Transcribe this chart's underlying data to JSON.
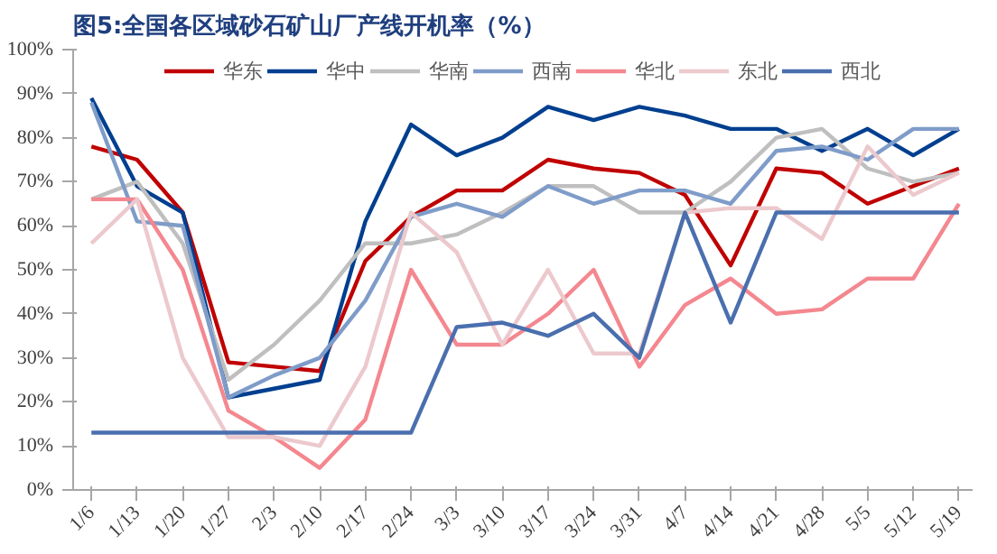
{
  "chart_data": {
    "type": "line",
    "title": "图5:全国各区域砂石矿山厂产线开机率（%）",
    "categories": [
      "1/6",
      "1/13",
      "1/20",
      "1/27",
      "2/3",
      "2/10",
      "2/17",
      "2/24",
      "3/3",
      "3/10",
      "3/17",
      "3/24",
      "3/31",
      "4/7",
      "4/14",
      "4/21",
      "4/28",
      "5/5",
      "5/12",
      "5/19"
    ],
    "series": [
      {
        "name": "华东",
        "color": "#c00000",
        "values": [
          78,
          75,
          63,
          29,
          28,
          27,
          52,
          62,
          68,
          68,
          75,
          73,
          72,
          67,
          51,
          73,
          72,
          65,
          69,
          73
        ]
      },
      {
        "name": "华中",
        "color": "#003f8f",
        "values": [
          89,
          69,
          63,
          21,
          23,
          25,
          61,
          83,
          76,
          80,
          87,
          84,
          87,
          85,
          82,
          82,
          77,
          82,
          76,
          82
        ]
      },
      {
        "name": "华南",
        "color": "#bfbfbf",
        "values": [
          66,
          70,
          56,
          25,
          33,
          43,
          56,
          56,
          58,
          63,
          69,
          69,
          63,
          63,
          70,
          80,
          82,
          73,
          70,
          72
        ]
      },
      {
        "name": "西南",
        "color": "#7f9cc9",
        "values": [
          88,
          61,
          60,
          21,
          26,
          30,
          43,
          62,
          65,
          62,
          69,
          65,
          68,
          68,
          65,
          77,
          78,
          75,
          82,
          82
        ]
      },
      {
        "name": "华北",
        "color": "#f4878f",
        "values": [
          66,
          66,
          50,
          18,
          12,
          5,
          16,
          50,
          33,
          33,
          40,
          50,
          28,
          42,
          48,
          40,
          41,
          48,
          48,
          65
        ]
      },
      {
        "name": "东北",
        "color": "#ecc9cd",
        "values": [
          56,
          66,
          30,
          12,
          12,
          10,
          28,
          63,
          54,
          33,
          50,
          31,
          31,
          63,
          64,
          64,
          57,
          78,
          67,
          72
        ]
      },
      {
        "name": "西北",
        "color": "#4a6fae",
        "values": [
          13,
          13,
          13,
          13,
          13,
          13,
          13,
          13,
          37,
          38,
          35,
          40,
          30,
          63,
          38,
          63,
          63,
          63,
          63,
          63
        ]
      }
    ],
    "ylim": [
      0,
      100
    ],
    "yticks": [
      {
        "value": 0,
        "label": "0%"
      },
      {
        "value": 10,
        "label": "10%"
      },
      {
        "value": 20,
        "label": "20%"
      },
      {
        "value": 30,
        "label": "30%"
      },
      {
        "value": 40,
        "label": "40%"
      },
      {
        "value": 50,
        "label": "50%"
      },
      {
        "value": 60,
        "label": "60%"
      },
      {
        "value": 70,
        "label": "70%"
      },
      {
        "value": 80,
        "label": "80%"
      },
      {
        "value": 90,
        "label": "90%"
      },
      {
        "value": 100,
        "label": "100%"
      }
    ],
    "legend": "top",
    "grid": false,
    "marker": "none",
    "line_style": "solid"
  }
}
